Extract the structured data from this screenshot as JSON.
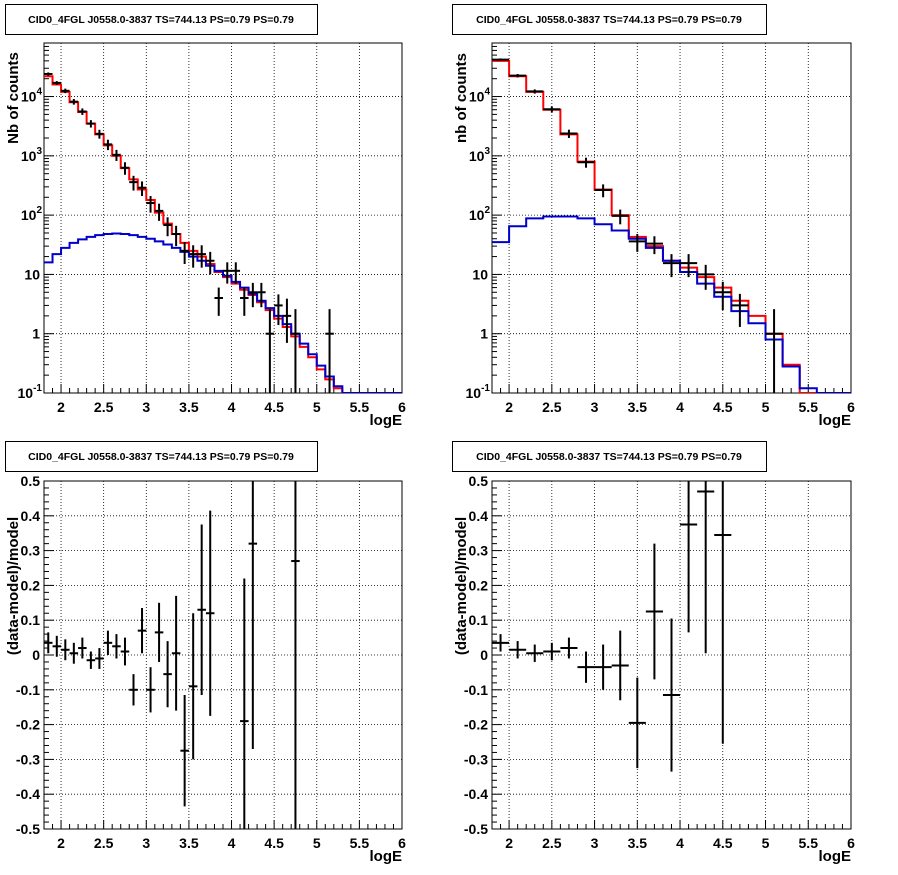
{
  "chart_data": [
    {
      "type": "line",
      "title": "CID0_4FGL J0558.0-3837 TS=744.13 PS=0.79 PS=0.79",
      "xlabel": "logE",
      "ylabel": "Nb of counts",
      "xlim": [
        1.8,
        6.0
      ],
      "ylim": [
        0.1,
        80000
      ],
      "log_y": true,
      "grid": true,
      "x_ticks": [
        "2",
        "2.5",
        "3",
        "3.5",
        "4",
        "4.5",
        "5",
        "5.5",
        "6"
      ],
      "y_ticks": [
        "10^-1",
        "1",
        "10",
        "10^2",
        "10^3",
        "10^4"
      ],
      "bin_edges": [
        1.8,
        1.9,
        2.0,
        2.1,
        2.2,
        2.3,
        2.4,
        2.5,
        2.6,
        2.7,
        2.8,
        2.9,
        3.0,
        3.1,
        3.2,
        3.3,
        3.4,
        3.5,
        3.6,
        3.7,
        3.8,
        3.9,
        4.0,
        4.1,
        4.2,
        4.3,
        4.4,
        4.5,
        4.6,
        4.7,
        4.8,
        4.9,
        5.0,
        5.1,
        5.2,
        5.3,
        5.4,
        5.5,
        5.6,
        5.7,
        5.8,
        5.9,
        6.0
      ],
      "series": [
        {
          "color": "#ff0000",
          "values": [
            22000,
            16000,
            12000,
            8000,
            5500,
            3500,
            2300,
            1500,
            1000,
            620,
            400,
            270,
            180,
            110,
            72,
            48,
            34,
            25,
            20,
            15,
            11,
            9,
            7,
            5.5,
            4.5,
            3.4,
            2.5,
            1.8,
            1.3,
            0.9,
            0.6,
            0.4,
            0.25,
            0.17,
            0.12,
            0.1,
            0.1,
            0.1,
            0.1,
            0.1,
            0.1,
            0.1
          ]
        },
        {
          "color": "#0000cc",
          "values": [
            16,
            22,
            28,
            34,
            39,
            43,
            46,
            48,
            49,
            48,
            46,
            43,
            40,
            36,
            32,
            28,
            24,
            20,
            17,
            14,
            11.5,
            9.5,
            7.5,
            6,
            4.7,
            3.6,
            2.7,
            2,
            1.45,
            1,
            0.68,
            0.45,
            0.29,
            0.19,
            0.13,
            0.1,
            0.1,
            0.1,
            0.1,
            0.1,
            0.1,
            0.1
          ]
        }
      ],
      "data_points": {
        "color": "#000000",
        "points": [
          {
            "x": 1.85,
            "y": 24000,
            "lo": 22500,
            "hi": 25500
          },
          {
            "x": 1.95,
            "y": 17000,
            "lo": 15800,
            "hi": 18200
          },
          {
            "x": 2.05,
            "y": 12500,
            "lo": 11400,
            "hi": 13600
          },
          {
            "x": 2.15,
            "y": 8200,
            "lo": 7300,
            "hi": 9100
          },
          {
            "x": 2.25,
            "y": 5600,
            "lo": 4900,
            "hi": 6300
          },
          {
            "x": 2.35,
            "y": 3500,
            "lo": 3000,
            "hi": 4000
          },
          {
            "x": 2.45,
            "y": 2350,
            "lo": 1950,
            "hi": 2750
          },
          {
            "x": 2.55,
            "y": 1560,
            "lo": 1250,
            "hi": 1870
          },
          {
            "x": 2.65,
            "y": 1040,
            "lo": 820,
            "hi": 1260
          },
          {
            "x": 2.75,
            "y": 630,
            "lo": 480,
            "hi": 780
          },
          {
            "x": 2.85,
            "y": 360,
            "lo": 260,
            "hi": 460
          },
          {
            "x": 2.95,
            "y": 290,
            "lo": 210,
            "hi": 370
          },
          {
            "x": 3.05,
            "y": 160,
            "lo": 110,
            "hi": 210
          },
          {
            "x": 3.15,
            "y": 118,
            "lo": 80,
            "hi": 156
          },
          {
            "x": 3.25,
            "y": 68,
            "lo": 44,
            "hi": 92
          },
          {
            "x": 3.35,
            "y": 48,
            "lo": 30,
            "hi": 66
          },
          {
            "x": 3.45,
            "y": 25,
            "lo": 15,
            "hi": 35
          },
          {
            "x": 3.55,
            "y": 22,
            "lo": 13,
            "hi": 31
          },
          {
            "x": 3.65,
            "y": 22,
            "lo": 13,
            "hi": 31
          },
          {
            "x": 3.75,
            "y": 17,
            "lo": 10,
            "hi": 24
          },
          {
            "x": 3.85,
            "y": 4,
            "lo": 2,
            "hi": 6
          },
          {
            "x": 3.95,
            "y": 11.5,
            "lo": 7,
            "hi": 16
          },
          {
            "x": 4.05,
            "y": 11.5,
            "lo": 7,
            "hi": 16
          },
          {
            "x": 4.15,
            "y": 4,
            "lo": 2,
            "hi": 6
          },
          {
            "x": 4.25,
            "y": 5,
            "lo": 2.8,
            "hi": 7.2
          },
          {
            "x": 4.35,
            "y": 5,
            "lo": 2.8,
            "hi": 7.2
          },
          {
            "x": 4.45,
            "y": 1,
            "lo": 0.1,
            "hi": 2.6
          },
          {
            "x": 4.55,
            "y": 3,
            "lo": 1.4,
            "hi": 4.6
          },
          {
            "x": 4.65,
            "y": 2,
            "lo": 0.7,
            "hi": 3.9
          },
          {
            "x": 4.75,
            "y": 1,
            "lo": 0.1,
            "hi": 2.6
          },
          {
            "x": 5.15,
            "y": 1,
            "lo": 0.1,
            "hi": 2.6
          }
        ]
      }
    },
    {
      "type": "line",
      "title": "CID0_4FGL J0558.0-3837 TS=744.13 PS=0.79 PS=0.79",
      "xlabel": "logE",
      "ylabel": "nb of counts",
      "xlim": [
        1.8,
        6.0
      ],
      "ylim": [
        0.1,
        80000
      ],
      "log_y": true,
      "grid": true,
      "x_ticks": [
        "2",
        "2.5",
        "3",
        "3.5",
        "4",
        "4.5",
        "5",
        "5.5",
        "6"
      ],
      "y_ticks": [
        "10^-1",
        "1",
        "10",
        "10^2",
        "10^3",
        "10^4"
      ],
      "bin_edges": [
        1.8,
        2.0,
        2.2,
        2.4,
        2.6,
        2.8,
        3.0,
        3.2,
        3.4,
        3.6,
        3.8,
        4.0,
        4.2,
        4.4,
        4.6,
        4.8,
        5.0,
        5.2,
        5.4,
        5.6,
        5.8,
        6.0
      ],
      "series": [
        {
          "color": "#ff0000",
          "values": [
            40000,
            22000,
            12000,
            6000,
            2300,
            800,
            270,
            100,
            43,
            30,
            17,
            13,
            9,
            6,
            3.6,
            2,
            1,
            0.3,
            0.1,
            0.1,
            0.1
          ]
        },
        {
          "color": "#0000cc",
          "values": [
            35,
            65,
            88,
            95,
            95,
            88,
            70,
            55,
            40,
            28,
            17,
            11,
            7,
            4.2,
            2.4,
            1.5,
            0.8,
            0.28,
            0.12,
            0.1,
            0.1
          ]
        }
      ],
      "data_points": {
        "color": "#000000",
        "points": [
          {
            "x": 1.9,
            "y": 42000,
            "lo": 40000,
            "hi": 44000
          },
          {
            "x": 2.1,
            "y": 22500,
            "lo": 21000,
            "hi": 24000
          },
          {
            "x": 2.3,
            "y": 12200,
            "lo": 11200,
            "hi": 13200
          },
          {
            "x": 2.5,
            "y": 6100,
            "lo": 5400,
            "hi": 6800
          },
          {
            "x": 2.7,
            "y": 2380,
            "lo": 2000,
            "hi": 2760
          },
          {
            "x": 2.9,
            "y": 780,
            "lo": 630,
            "hi": 930
          },
          {
            "x": 3.1,
            "y": 265,
            "lo": 200,
            "hi": 330
          },
          {
            "x": 3.3,
            "y": 97,
            "lo": 70,
            "hi": 124
          },
          {
            "x": 3.5,
            "y": 36,
            "lo": 24,
            "hi": 48
          },
          {
            "x": 3.7,
            "y": 33,
            "lo": 22,
            "hi": 44
          },
          {
            "x": 3.9,
            "y": 15.5,
            "lo": 9,
            "hi": 22
          },
          {
            "x": 4.1,
            "y": 15.5,
            "lo": 9,
            "hi": 22
          },
          {
            "x": 4.3,
            "y": 10,
            "lo": 5.5,
            "hi": 14.5
          },
          {
            "x": 4.5,
            "y": 5,
            "lo": 2.5,
            "hi": 7.5
          },
          {
            "x": 4.7,
            "y": 3,
            "lo": 1.3,
            "hi": 4.7
          },
          {
            "x": 5.1,
            "y": 1,
            "lo": 0.1,
            "hi": 2.6
          }
        ]
      }
    },
    {
      "type": "scatter",
      "title": "CID0_4FGL J0558.0-3837 TS=744.13 PS=0.79 PS=0.79",
      "xlabel": "logE",
      "ylabel": "(data-model)/model",
      "xlim": [
        1.8,
        6.0
      ],
      "ylim": [
        -0.5,
        0.5
      ],
      "grid": true,
      "x_ticks": [
        "2",
        "2.5",
        "3",
        "3.5",
        "4",
        "4.5",
        "5",
        "5.5",
        "6"
      ],
      "y_ticks": [
        "-0.5",
        "-0.4",
        "-0.3",
        "-0.2",
        "-0.1",
        "0",
        "0.1",
        "0.2",
        "0.3",
        "0.4",
        "0.5"
      ],
      "x_half_width": 0.05,
      "points": [
        {
          "x": 1.85,
          "y": 0.035,
          "err": 0.03
        },
        {
          "x": 1.95,
          "y": 0.025,
          "err": 0.03
        },
        {
          "x": 2.05,
          "y": 0.015,
          "err": 0.03
        },
        {
          "x": 2.15,
          "y": 0.005,
          "err": 0.03
        },
        {
          "x": 2.25,
          "y": 0.02,
          "err": 0.03
        },
        {
          "x": 2.35,
          "y": -0.015,
          "err": 0.025
        },
        {
          "x": 2.45,
          "y": -0.01,
          "err": 0.03
        },
        {
          "x": 2.55,
          "y": 0.035,
          "err": 0.035
        },
        {
          "x": 2.65,
          "y": 0.025,
          "err": 0.035
        },
        {
          "x": 2.75,
          "y": 0.01,
          "err": 0.04
        },
        {
          "x": 2.85,
          "y": -0.1,
          "err": 0.045
        },
        {
          "x": 2.95,
          "y": 0.07,
          "err": 0.065
        },
        {
          "x": 3.05,
          "y": -0.1,
          "err": 0.065
        },
        {
          "x": 3.15,
          "y": 0.065,
          "err": 0.085
        },
        {
          "x": 3.25,
          "y": -0.055,
          "err": 0.095
        },
        {
          "x": 3.35,
          "y": 0.005,
          "err": 0.165
        },
        {
          "x": 3.45,
          "y": -0.275,
          "err": 0.16
        },
        {
          "x": 3.55,
          "y": -0.09,
          "err": 0.21
        },
        {
          "x": 3.65,
          "y": 0.13,
          "err": 0.245
        },
        {
          "x": 3.75,
          "y": 0.12,
          "err": 0.295
        },
        {
          "x": 4.15,
          "y": -0.19,
          "err": 0.41
        },
        {
          "x": 4.25,
          "y": 0.32,
          "err": 0.59
        },
        {
          "x": 4.75,
          "y": 0.27,
          "err": 0.77
        }
      ]
    },
    {
      "type": "scatter",
      "title": "CID0_4FGL J0558.0-3837 TS=744.13 PS=0.79 PS=0.79",
      "xlabel": "logE",
      "ylabel": "(data-model)/model",
      "xlim": [
        1.8,
        6.0
      ],
      "ylim": [
        -0.5,
        0.5
      ],
      "grid": true,
      "x_ticks": [
        "2",
        "2.5",
        "3",
        "3.5",
        "4",
        "4.5",
        "5",
        "5.5",
        "6"
      ],
      "y_ticks": [
        "-0.5",
        "-0.4",
        "-0.3",
        "-0.2",
        "-0.1",
        "0",
        "0.1",
        "0.2",
        "0.3",
        "0.4",
        "0.5"
      ],
      "x_half_width": 0.1,
      "points": [
        {
          "x": 1.9,
          "y": 0.035,
          "err": 0.025
        },
        {
          "x": 2.1,
          "y": 0.015,
          "err": 0.025
        },
        {
          "x": 2.3,
          "y": 0.005,
          "err": 0.025
        },
        {
          "x": 2.5,
          "y": 0.01,
          "err": 0.025
        },
        {
          "x": 2.7,
          "y": 0.02,
          "err": 0.03
        },
        {
          "x": 2.9,
          "y": -0.035,
          "err": 0.045
        },
        {
          "x": 3.1,
          "y": -0.035,
          "err": 0.065
        },
        {
          "x": 3.3,
          "y": -0.03,
          "err": 0.1
        },
        {
          "x": 3.5,
          "y": -0.195,
          "err": 0.13
        },
        {
          "x": 3.7,
          "y": 0.125,
          "err": 0.195
        },
        {
          "x": 3.9,
          "y": -0.115,
          "err": 0.22
        },
        {
          "x": 4.1,
          "y": 0.375,
          "err": 0.31
        },
        {
          "x": 4.3,
          "y": 0.47,
          "err": 0.465
        },
        {
          "x": 4.5,
          "y": 0.345,
          "err": 0.6
        }
      ]
    }
  ]
}
